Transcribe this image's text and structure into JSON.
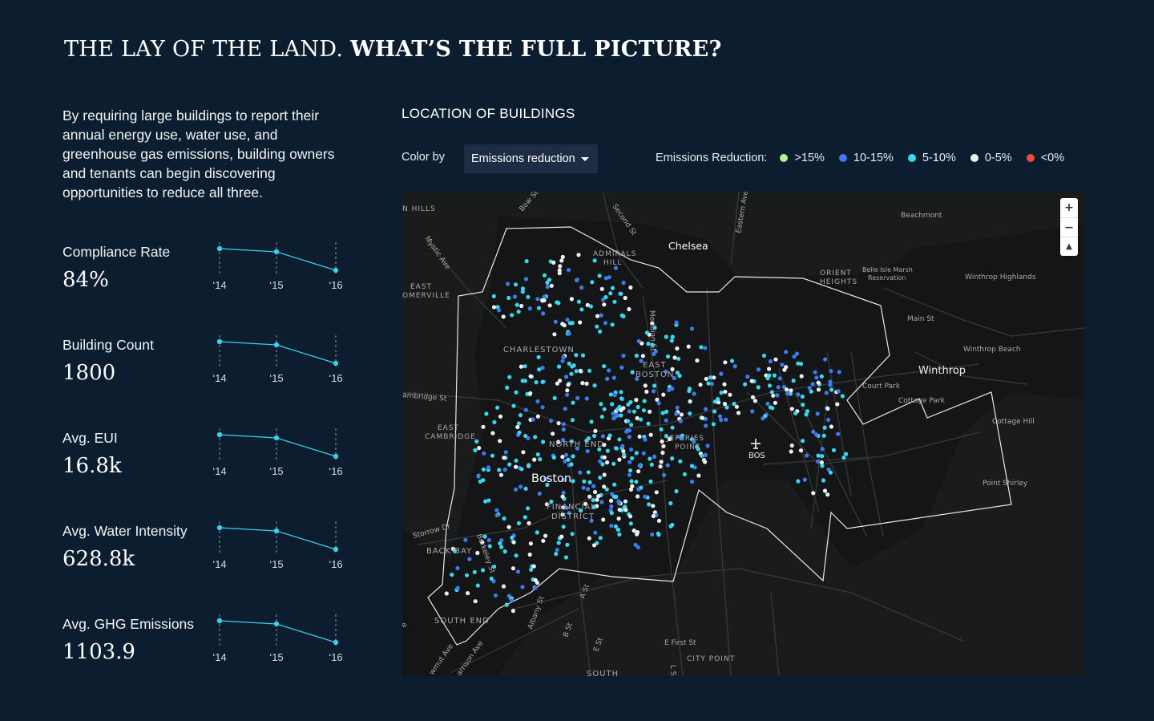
{
  "title": {
    "light": "THE LAY OF THE LAND.",
    "bold": "WHAT’S THE FULL PICTURE?"
  },
  "intro": "By requiring large buildings to report their annual energy use, water use, and greenhouse gas emissions, building owners and tenants  can begin discovering opportunities to reduce all three.",
  "years": [
    "‘14",
    "‘15",
    "‘16"
  ],
  "metrics": [
    {
      "label": "Compliance Rate",
      "value": "84%"
    },
    {
      "label": "Building Count",
      "value": "1800"
    },
    {
      "label": "Avg. EUI",
      "value": "16.8k"
    },
    {
      "label": "Avg. Water Intensity",
      "value": "628.8k"
    },
    {
      "label": "Avg. GHG Emissions",
      "value": "1103.9"
    }
  ],
  "map_section": {
    "title": "LOCATION OF BUILDINGS",
    "color_by_label": "Color by",
    "color_by_value": "Emissions reduction",
    "legend_title": "Emissions Reduction:",
    "legend": [
      {
        "label": ">15%",
        "color": "#b6f08f"
      },
      {
        "label": "10-15%",
        "color": "#3e7bf2"
      },
      {
        "label": "5-10%",
        "color": "#39d8ee"
      },
      {
        "label": "0-5%",
        "color": "#eef0f3"
      },
      {
        "label": "<0%",
        "color": "#ee4b3d"
      }
    ]
  },
  "map": {
    "zoom_in": "+",
    "zoom_out": "−",
    "compass": "▲",
    "places": {
      "chelsea": "Chelsea",
      "boston": "Boston",
      "winthrop": "Winthrop",
      "bos": "BOS",
      "charlestown": "CHARLESTOWN",
      "north_end": "NORTH END",
      "east_boston": "EAST\nBOSTON",
      "jeffries_point": "JEFFRIES\nPOINT",
      "financial_district": "FINANCIAL\nDISTRICT",
      "back_bay": "BACK BAY",
      "south_end": "SOUTH END",
      "south": "SOUTH",
      "city_point": "CITY POINT",
      "admirals_hill": "ADMIRALS\nHILL",
      "orient_heights": "ORIENT\nHEIGHTS",
      "east_somerville": "EAST\nOMERVILLE",
      "east_cambridge": "EAST\nCAMBRIDGE",
      "n_hills": "N HILLS",
      "beachmont": "Beachmont",
      "belle_isle": "Belle Isle Marsh\nReservation",
      "winthrop_highlands": "Winthrop Highlands",
      "winthrop_beach": "Winthrop Beach",
      "court_park": "Court Park",
      "cottage_park": "Cottage Park",
      "cottage_hill": "Cottage Hill",
      "point_shirley": "Point Shirley",
      "main_st": "Main St",
      "bow_st": "Bow St",
      "second_st": "Second St",
      "eastern_ave": "Eastern Ave",
      "mystic_ave": "Mystic Ave",
      "meridian_st": "Meridian St",
      "cambridge_st": "ambridge St",
      "storrow_dr": "Storrow Dr",
      "albany_st": "Albany St",
      "a_st": "A St",
      "b_st": "B St",
      "e_st": "E St",
      "e_first_st": "E First St",
      "l_st": "L St",
      "berkeley_st": "Berkeley St",
      "mass_ave": "wmut Ave",
      "harrison_ave": "arrison Ave",
      "e_label": "e"
    }
  }
}
